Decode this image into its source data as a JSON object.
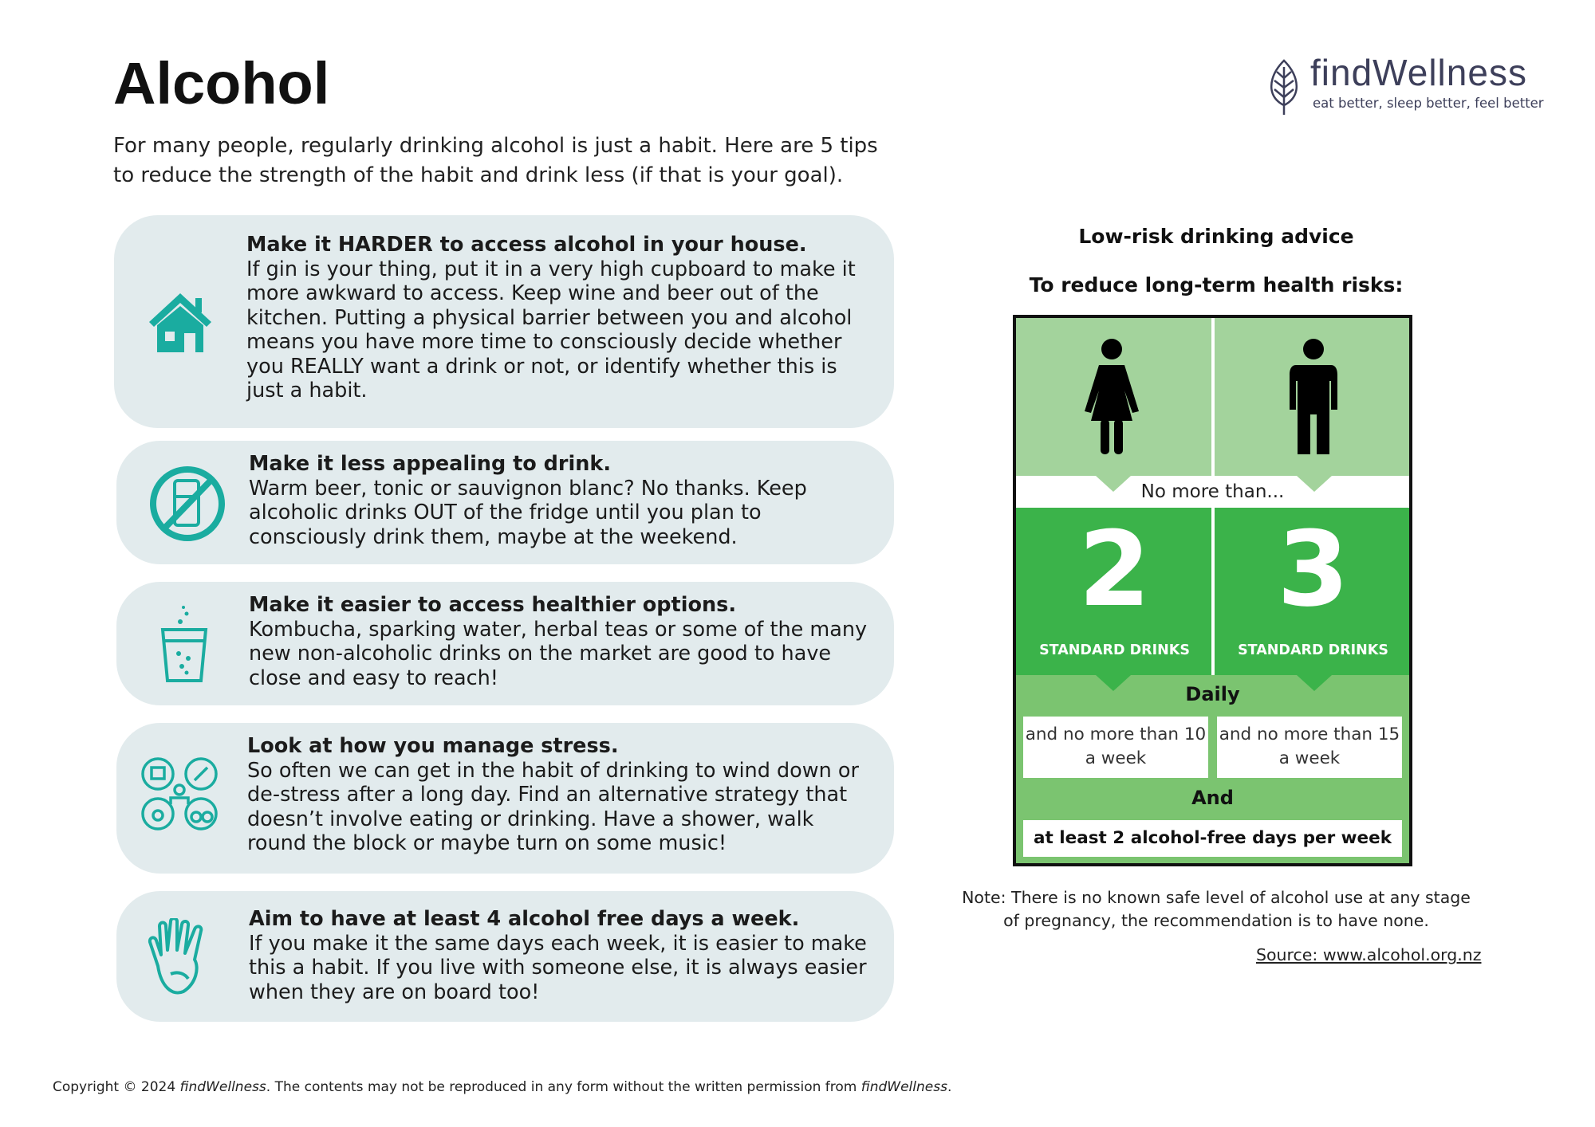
{
  "title": "Alcohol",
  "intro": "For many people, regularly drinking alcohol is just a habit. Here are 5 tips to reduce the strength of the habit and drink less (if that is your goal).",
  "brand": {
    "name": "findWellness",
    "tagline": "eat better, sleep better, feel better",
    "icon": "leaf-icon"
  },
  "accent": "#1aaca0",
  "tips": [
    {
      "icon": "house-icon",
      "heading": "Make it HARDER to access alcohol in your house.",
      "body": "If gin is your thing, put it in a very high cupboard to make it more awkward to access. Keep wine and beer out of the kitchen. Putting a physical barrier between you and alcohol means you have more time to consciously decide whether you REALLY want a drink or not, or identify whether this is just a habit."
    },
    {
      "icon": "no-fridge-icon",
      "heading": "Make it less appealing to drink.",
      "body": "Warm beer, tonic or sauvignon blanc? No thanks. Keep alcoholic drinks OUT of the fridge until you plan to consciously drink them, maybe at the weekend."
    },
    {
      "icon": "sparkling-glass-icon",
      "heading": "Make it easier to access healthier options.",
      "body": "Kombucha, sparking water, herbal teas or some of the many new non-alcoholic drinks on the market are good to have close and easy to reach!"
    },
    {
      "icon": "hobbies-icon",
      "heading": "Look at how you manage stress.",
      "body": "So often we can get in the habit of drinking to wind down or de-stress after a long day. Find an alternative strategy that doesn’t involve eating or drinking. Have a shower, walk round the block or maybe turn on some music!"
    },
    {
      "icon": "hand-four-icon",
      "heading": "Aim to have at least 4 alcohol free days a week.",
      "body": "If you make it the same days each week, it is easier to make this a habit. If you live with someone else, it is always easier when they are on board too!"
    }
  ],
  "right": {
    "heading": "Low-risk drinking advice",
    "subheading": "To reduce long-term health risks:",
    "infographic": {
      "no_more_than": "No more than...",
      "women": {
        "icon": "woman-icon",
        "number": "2",
        "unit": "STANDARD DRINKS",
        "weekly": "and no more than 10 a week"
      },
      "men": {
        "icon": "man-icon",
        "number": "3",
        "unit": "STANDARD DRINKS",
        "weekly": "and no more than 15 a week"
      },
      "daily": "Daily",
      "and": "And",
      "free_days": "at least 2 alcohol-free days per week",
      "colors": {
        "light": "#a3d39c",
        "bright": "#3bb34a",
        "mid": "#7bc470"
      }
    },
    "note": "Note: There is no known safe level of alcohol use at any stage of pregnancy, the recommendation is to have none.",
    "source": "Source: www.alcohol.org.nz "
  },
  "copyright": {
    "prefix": "Copyright © 2024 ",
    "brand1": "findWellness",
    "middle": ". The contents may not be reproduced in any form without the written permission from ",
    "brand2": "findWellness",
    "suffix": "."
  }
}
